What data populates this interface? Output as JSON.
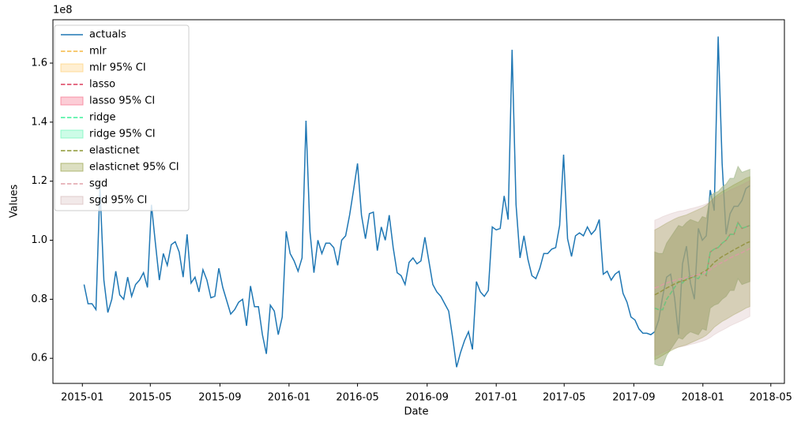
{
  "chart_data": {
    "type": "line",
    "x_label": "Date",
    "y_label": "Values",
    "y_offset_label": "1e8",
    "xlim": [
      "2014-11-10",
      "2018-05-25"
    ],
    "xticks": [
      "2015-01",
      "2015-05",
      "2015-09",
      "2016-01",
      "2016-05",
      "2016-09",
      "2017-01",
      "2017-05",
      "2017-09",
      "2018-01",
      "2018-05"
    ],
    "ylim": [
      0.515,
      1.747
    ],
    "yticks": [
      0.6,
      0.8,
      {
        "value": 1,
        "label": "1.0"
      },
      1.2,
      1.4,
      1.6
    ],
    "legend": "upper left",
    "x": [
      "2015-01-04",
      "2015-01-11",
      "2015-01-18",
      "2015-01-25",
      "2015-02-01",
      "2015-02-08",
      "2015-02-15",
      "2015-02-22",
      "2015-03-01",
      "2015-03-08",
      "2015-03-15",
      "2015-03-22",
      "2015-03-29",
      "2015-04-05",
      "2015-04-12",
      "2015-04-19",
      "2015-04-26",
      "2015-05-03",
      "2015-05-10",
      "2015-05-17",
      "2015-05-24",
      "2015-05-31",
      "2015-06-07",
      "2015-06-14",
      "2015-06-21",
      "2015-06-28",
      "2015-07-05",
      "2015-07-12",
      "2015-07-19",
      "2015-07-26",
      "2015-08-02",
      "2015-08-09",
      "2015-08-16",
      "2015-08-23",
      "2015-08-30",
      "2015-09-06",
      "2015-09-13",
      "2015-09-20",
      "2015-09-27",
      "2015-10-04",
      "2015-10-11",
      "2015-10-18",
      "2015-10-25",
      "2015-11-01",
      "2015-11-08",
      "2015-11-15",
      "2015-11-22",
      "2015-11-29",
      "2015-12-06",
      "2015-12-13",
      "2015-12-20",
      "2015-12-27",
      "2016-01-03",
      "2016-01-10",
      "2016-01-17",
      "2016-01-24",
      "2016-01-31",
      "2016-02-07",
      "2016-02-14",
      "2016-02-21",
      "2016-02-28",
      "2016-03-06",
      "2016-03-13",
      "2016-03-20",
      "2016-03-27",
      "2016-04-03",
      "2016-04-10",
      "2016-04-17",
      "2016-04-24",
      "2016-05-01",
      "2016-05-08",
      "2016-05-15",
      "2016-05-22",
      "2016-05-29",
      "2016-06-05",
      "2016-06-12",
      "2016-06-19",
      "2016-06-26",
      "2016-07-03",
      "2016-07-10",
      "2016-07-17",
      "2016-07-24",
      "2016-07-31",
      "2016-08-07",
      "2016-08-14",
      "2016-08-21",
      "2016-08-28",
      "2016-09-04",
      "2016-09-11",
      "2016-09-18",
      "2016-09-25",
      "2016-10-02",
      "2016-10-09",
      "2016-10-16",
      "2016-10-23",
      "2016-10-30",
      "2016-11-06",
      "2016-11-13",
      "2016-11-20",
      "2016-11-27",
      "2016-12-04",
      "2016-12-11",
      "2016-12-18",
      "2016-12-25",
      "2017-01-01",
      "2017-01-08",
      "2017-01-15",
      "2017-01-22",
      "2017-01-29",
      "2017-02-05",
      "2017-02-12",
      "2017-02-19",
      "2017-02-26",
      "2017-03-05",
      "2017-03-12",
      "2017-03-19",
      "2017-03-26",
      "2017-04-02",
      "2017-04-09",
      "2017-04-16",
      "2017-04-23",
      "2017-04-30",
      "2017-05-07",
      "2017-05-14",
      "2017-05-21",
      "2017-05-28",
      "2017-06-04",
      "2017-06-11",
      "2017-06-18",
      "2017-06-25",
      "2017-07-02",
      "2017-07-09",
      "2017-07-16",
      "2017-07-23",
      "2017-07-30",
      "2017-08-06",
      "2017-08-13",
      "2017-08-20",
      "2017-08-27",
      "2017-09-03",
      "2017-09-10",
      "2017-09-17",
      "2017-09-24",
      "2017-10-01",
      "2017-10-08",
      "2017-10-15",
      "2017-10-22",
      "2017-10-29",
      "2017-11-05",
      "2017-11-12",
      "2017-11-19",
      "2017-11-26",
      "2017-12-03",
      "2017-12-10",
      "2017-12-17",
      "2017-12-24",
      "2017-12-31",
      "2018-01-07",
      "2018-01-14",
      "2018-01-21",
      "2018-01-28",
      "2018-02-04",
      "2018-02-11",
      "2018-02-18",
      "2018-02-25",
      "2018-03-04",
      "2018-03-11",
      "2018-03-18",
      "2018-03-25"
    ],
    "series": [
      {
        "name": "actuals",
        "color": "#1f77b4",
        "values": [
          0.85,
          0.785,
          0.785,
          0.765,
          1.18,
          0.865,
          0.755,
          0.8,
          0.895,
          0.815,
          0.8,
          0.875,
          0.81,
          0.85,
          0.865,
          0.89,
          0.84,
          1.12,
          0.99,
          0.865,
          0.955,
          0.915,
          0.985,
          0.995,
          0.96,
          0.875,
          1.02,
          0.855,
          0.875,
          0.825,
          0.9,
          0.865,
          0.805,
          0.81,
          0.905,
          0.84,
          0.795,
          0.75,
          0.765,
          0.79,
          0.8,
          0.71,
          0.845,
          0.775,
          0.775,
          0.68,
          0.615,
          0.78,
          0.76,
          0.68,
          0.74,
          1.03,
          0.955,
          0.93,
          0.895,
          0.94,
          1.405,
          1.03,
          0.89,
          1.0,
          0.955,
          0.99,
          0.99,
          0.975,
          0.915,
          1.0,
          1.015,
          1.085,
          1.17,
          1.26,
          1.085,
          1.005,
          1.09,
          1.095,
          0.965,
          1.045,
          1.0,
          1.085,
          0.975,
          0.89,
          0.88,
          0.85,
          0.925,
          0.94,
          0.92,
          0.93,
          1.01,
          0.93,
          0.85,
          0.825,
          0.81,
          0.785,
          0.76,
          0.67,
          0.57,
          0.62,
          0.66,
          0.69,
          0.63,
          0.86,
          0.825,
          0.81,
          0.83,
          1.045,
          1.035,
          1.04,
          1.15,
          1.07,
          1.645,
          1.12,
          0.94,
          1.015,
          0.935,
          0.88,
          0.87,
          0.905,
          0.955,
          0.955,
          0.97,
          0.975,
          1.05,
          1.29,
          1.005,
          0.945,
          1.015,
          1.025,
          1.015,
          1.045,
          1.02,
          1.035,
          1.07,
          0.885,
          0.895,
          0.865,
          0.885,
          0.895,
          0.82,
          0.79,
          0.74,
          0.73,
          0.7,
          0.685,
          0.685,
          0.68,
          0.69,
          0.73,
          0.81,
          0.875,
          0.885,
          0.805,
          0.68,
          0.92,
          0.98,
          0.855,
          0.8,
          1.04,
          1.0,
          1.015,
          1.17,
          1.1,
          1.69,
          1.26,
          1.02,
          1.09,
          1.115,
          1.115,
          1.135,
          1.175,
          1.185
        ]
      }
    ],
    "forecast": {
      "x": [
        "2017-10-08",
        "2017-10-15",
        "2017-10-22",
        "2017-10-29",
        "2017-11-05",
        "2017-11-12",
        "2017-11-19",
        "2017-11-26",
        "2017-12-03",
        "2017-12-10",
        "2017-12-17",
        "2017-12-24",
        "2017-12-31",
        "2018-01-07",
        "2018-01-14",
        "2018-01-21",
        "2018-01-28",
        "2018-02-04",
        "2018-02-11",
        "2018-02-18",
        "2018-02-25",
        "2018-03-04",
        "2018-03-11",
        "2018-03-18",
        "2018-03-25"
      ],
      "series": [
        {
          "name": "mlr",
          "color": "#f5b942",
          "dashed": true,
          "values": [
            0.77,
            0.765,
            0.765,
            0.8,
            0.82,
            0.84,
            0.86,
            0.855,
            0.87,
            0.88,
            0.875,
            0.87,
            0.89,
            0.885,
            0.96,
            0.97,
            0.975,
            0.99,
            1.0,
            1.02,
            1.02,
            1.06,
            1.04,
            1.045,
            1.05
          ]
        },
        {
          "name": "mlr 95% CI",
          "color": "#ffc14d",
          "alpha": 0.25,
          "lower": [
            0.58,
            0.575,
            0.575,
            0.61,
            0.63,
            0.65,
            0.67,
            0.665,
            0.68,
            0.69,
            0.685,
            0.68,
            0.7,
            0.695,
            0.77,
            0.78,
            0.785,
            0.8,
            0.81,
            0.83,
            0.83,
            0.87,
            0.85,
            0.855,
            0.86
          ],
          "upper": [
            0.96,
            0.955,
            0.955,
            0.99,
            1.01,
            1.03,
            1.05,
            1.045,
            1.06,
            1.07,
            1.065,
            1.06,
            1.08,
            1.075,
            1.15,
            1.16,
            1.165,
            1.18,
            1.19,
            1.21,
            1.21,
            1.25,
            1.23,
            1.235,
            1.24
          ]
        },
        {
          "name": "lasso",
          "color": "#dc3c5a",
          "dashed": true,
          "values": [
            0.77,
            0.765,
            0.765,
            0.8,
            0.82,
            0.84,
            0.86,
            0.855,
            0.87,
            0.88,
            0.875,
            0.87,
            0.89,
            0.88,
            0.96,
            0.97,
            0.975,
            0.99,
            1.0,
            1.02,
            1.02,
            1.06,
            1.04,
            1.045,
            1.05
          ]
        },
        {
          "name": "lasso 95% CI",
          "color": "#f7708a",
          "alpha": 0.35,
          "lower": [
            0.58,
            0.575,
            0.575,
            0.61,
            0.63,
            0.65,
            0.67,
            0.665,
            0.68,
            0.69,
            0.685,
            0.68,
            0.7,
            0.695,
            0.77,
            0.78,
            0.785,
            0.8,
            0.81,
            0.83,
            0.83,
            0.87,
            0.85,
            0.855,
            0.86
          ],
          "upper": [
            0.96,
            0.955,
            0.955,
            0.99,
            1.01,
            1.03,
            1.05,
            1.045,
            1.06,
            1.07,
            1.065,
            1.06,
            1.08,
            1.075,
            1.15,
            1.16,
            1.165,
            1.18,
            1.19,
            1.21,
            1.21,
            1.25,
            1.23,
            1.235,
            1.24
          ]
        },
        {
          "name": "ridge",
          "color": "#3cf09a",
          "dashed": true,
          "values": [
            0.77,
            0.765,
            0.765,
            0.8,
            0.82,
            0.84,
            0.86,
            0.855,
            0.87,
            0.88,
            0.875,
            0.87,
            0.89,
            0.885,
            0.96,
            0.97,
            0.975,
            0.99,
            1.0,
            1.02,
            1.02,
            1.06,
            1.04,
            1.045,
            1.05
          ]
        },
        {
          "name": "ridge 95% CI",
          "color": "#5af5b0",
          "alpha": 0.3,
          "lower": [
            0.58,
            0.575,
            0.575,
            0.61,
            0.63,
            0.65,
            0.67,
            0.665,
            0.68,
            0.69,
            0.685,
            0.68,
            0.7,
            0.695,
            0.77,
            0.78,
            0.785,
            0.8,
            0.81,
            0.83,
            0.83,
            0.87,
            0.85,
            0.855,
            0.86
          ],
          "upper": [
            0.96,
            0.955,
            0.955,
            0.99,
            1.01,
            1.03,
            1.05,
            1.045,
            1.06,
            1.07,
            1.065,
            1.06,
            1.08,
            1.075,
            1.15,
            1.16,
            1.165,
            1.18,
            1.19,
            1.21,
            1.21,
            1.25,
            1.23,
            1.235,
            1.24
          ]
        },
        {
          "name": "elasticnet",
          "color": "#8c9632",
          "dashed": true,
          "values": [
            0.815,
            0.822,
            0.83,
            0.838,
            0.845,
            0.852,
            0.858,
            0.862,
            0.866,
            0.872,
            0.878,
            0.884,
            0.89,
            0.898,
            0.91,
            0.925,
            0.935,
            0.945,
            0.952,
            0.96,
            0.968,
            0.975,
            0.982,
            0.99,
            0.995
          ]
        },
        {
          "name": "elasticnet 95% CI",
          "color": "#8c9632",
          "alpha": 0.3,
          "lower": [
            0.595,
            0.602,
            0.61,
            0.618,
            0.625,
            0.632,
            0.638,
            0.642,
            0.646,
            0.652,
            0.658,
            0.664,
            0.67,
            0.678,
            0.69,
            0.705,
            0.715,
            0.725,
            0.732,
            0.74,
            0.748,
            0.755,
            0.762,
            0.77,
            0.775
          ],
          "upper": [
            1.035,
            1.042,
            1.05,
            1.058,
            1.065,
            1.072,
            1.078,
            1.082,
            1.086,
            1.092,
            1.098,
            1.104,
            1.11,
            1.118,
            1.13,
            1.145,
            1.155,
            1.165,
            1.172,
            1.18,
            1.188,
            1.195,
            1.202,
            1.21,
            1.215
          ]
        },
        {
          "name": "sgd",
          "color": "#e0a0a8",
          "dashed": true,
          "values": [
            0.838,
            0.843,
            0.85,
            0.855,
            0.86,
            0.864,
            0.868,
            0.87,
            0.873,
            0.877,
            0.88,
            0.884,
            0.888,
            0.893,
            0.9,
            0.91,
            0.918,
            0.925,
            0.932,
            0.94,
            0.946,
            0.952,
            0.958,
            0.965,
            0.972
          ]
        },
        {
          "name": "sgd 95% CI",
          "color": "#c09090",
          "alpha": 0.2,
          "lower": [
            0.608,
            0.613,
            0.62,
            0.625,
            0.63,
            0.634,
            0.638,
            0.64,
            0.643,
            0.647,
            0.65,
            0.654,
            0.658,
            0.663,
            0.67,
            0.68,
            0.688,
            0.695,
            0.702,
            0.71,
            0.716,
            0.722,
            0.728,
            0.735,
            0.742
          ],
          "upper": [
            1.068,
            1.073,
            1.08,
            1.085,
            1.09,
            1.094,
            1.098,
            1.1,
            1.103,
            1.107,
            1.11,
            1.114,
            1.118,
            1.123,
            1.13,
            1.14,
            1.148,
            1.155,
            1.162,
            1.17,
            1.176,
            1.182,
            1.188,
            1.195,
            1.202
          ]
        }
      ]
    }
  }
}
